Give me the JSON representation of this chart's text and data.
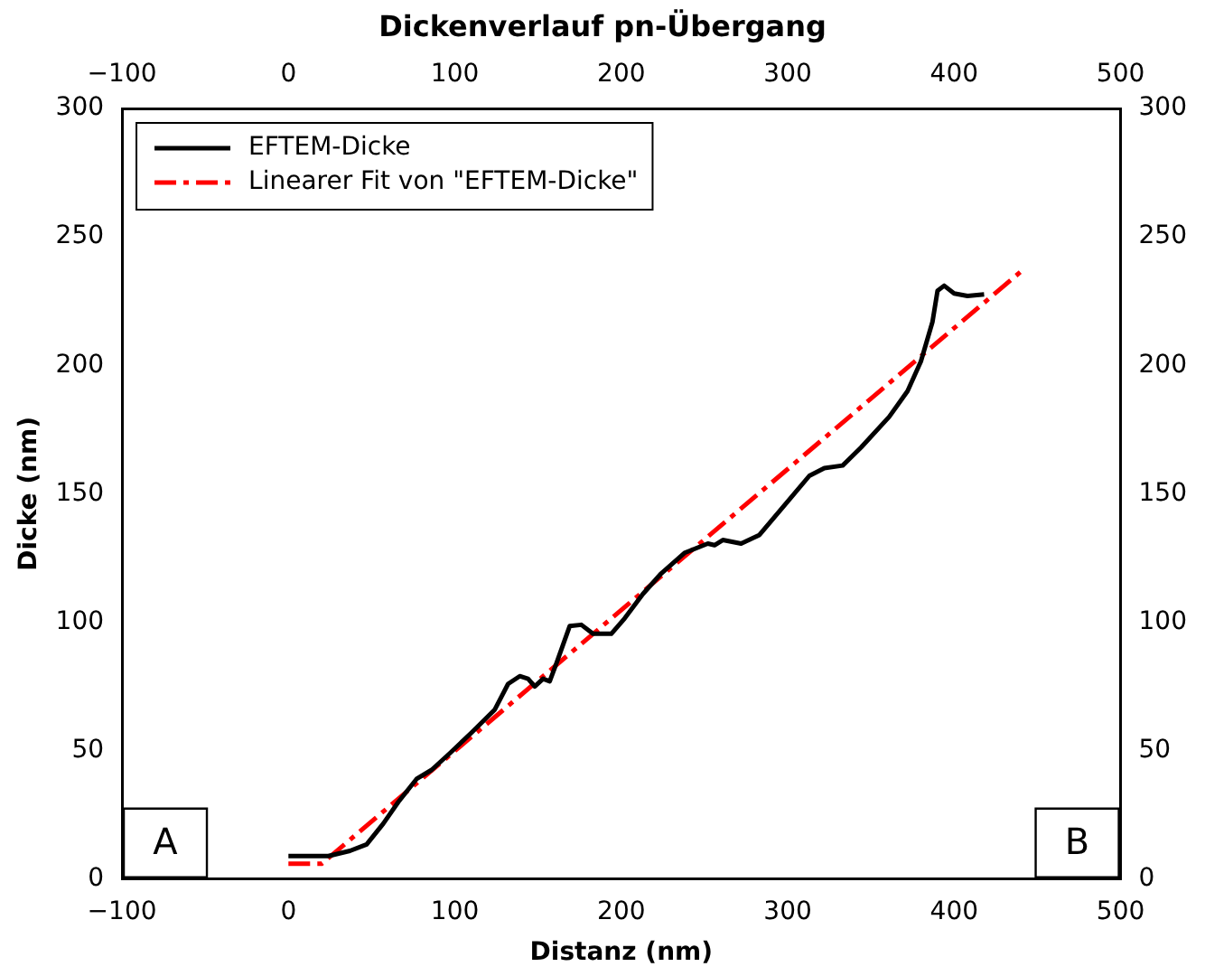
{
  "chart_data": {
    "type": "line",
    "title": "Dickenverlauf pn-Übergang",
    "xlabel": "Distanz (nm)",
    "ylabel": "Dicke (nm)",
    "xlim": [
      -100,
      500
    ],
    "xticks": [
      -100,
      0,
      100,
      200,
      300,
      400,
      500
    ],
    "x2lim": [
      -100,
      500
    ],
    "x2ticks": [
      -100,
      0,
      100,
      200,
      300,
      400,
      500
    ],
    "ylim": [
      0,
      300
    ],
    "yticks": [
      0,
      50,
      100,
      150,
      200,
      250,
      300
    ],
    "y2lim": [
      0,
      300
    ],
    "y2ticks": [
      0,
      50,
      100,
      150,
      200,
      250,
      300
    ],
    "legend": "top left",
    "grid": false,
    "marker": "none",
    "annotations": [
      "A",
      "B"
    ],
    "series": [
      {
        "name": "EFTEM-Dicke",
        "color": "#000000",
        "line_style": "solid",
        "x": [
          0,
          24,
          37,
          47,
          57,
          66,
          77,
          86,
          97,
          110,
          124,
          132,
          139,
          144,
          148,
          153,
          157,
          161,
          169,
          176,
          183,
          194,
          202,
          213,
          224,
          238,
          252,
          256,
          261,
          272,
          283,
          300,
          313,
          322,
          333,
          344,
          361,
          372,
          380,
          387,
          390,
          394,
          400,
          408,
          418
        ],
        "values": [
          9,
          9,
          11,
          13.5,
          21.6,
          30,
          39,
          42.5,
          49,
          57,
          66,
          76,
          79,
          78,
          75,
          78,
          77,
          84,
          98.5,
          99,
          95.5,
          95.5,
          101.5,
          111,
          119,
          127,
          130.6,
          130,
          132,
          130.6,
          134,
          147,
          157,
          160,
          161,
          168,
          180,
          190,
          201.5,
          217,
          229,
          231,
          228,
          227,
          227.6
        ]
      },
      {
        "name": "Linearer Fit von \"EFTEM-Dicke\"",
        "color": "#ff0000",
        "line_style": "dashed",
        "x": [
          0,
          20,
          441
        ],
        "values": [
          6,
          6,
          237
        ]
      }
    ]
  }
}
